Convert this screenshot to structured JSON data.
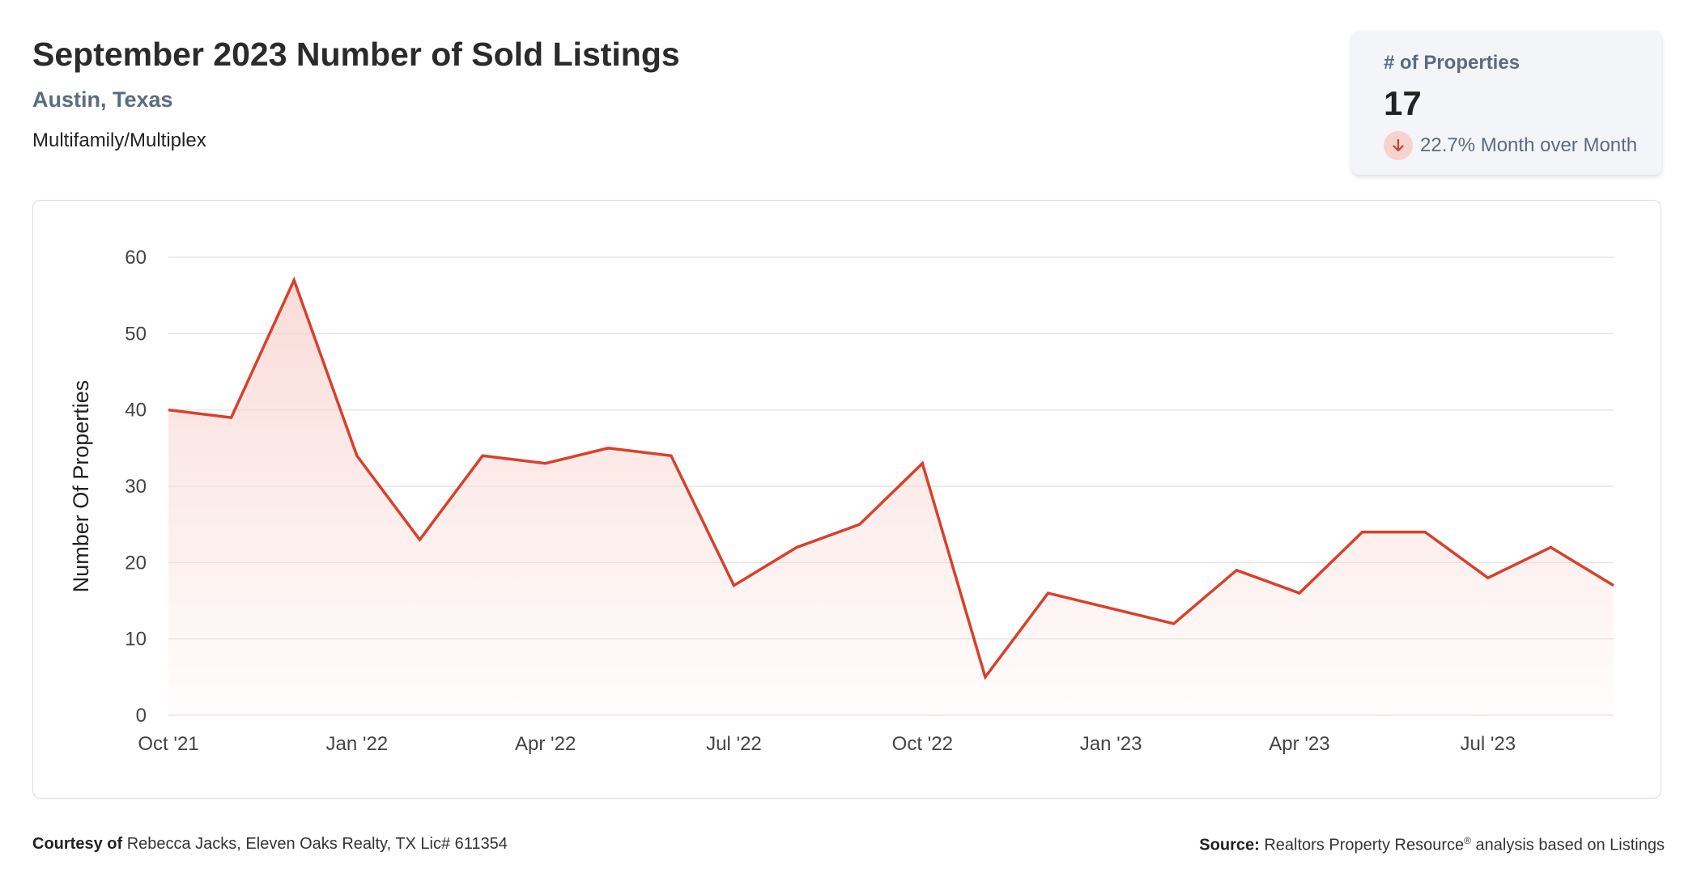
{
  "header": {
    "title": "September 2023 Number of Sold Listings",
    "subtitle": "Austin, Texas",
    "category": "Multifamily/Multiplex"
  },
  "kpi": {
    "label": "# of Properties",
    "value": "17",
    "change": "22.7% Month over Month",
    "direction": "down"
  },
  "footer": {
    "courtesy_label": "Courtesy of",
    "courtesy_text": "Rebecca Jacks, Eleven Oaks Realty, TX Lic# 611354",
    "source_label": "Source:",
    "source_name": "Realtors Property Resource",
    "source_mark": "®",
    "source_text": "analysis based on Listings"
  },
  "colors": {
    "line": "#d9402b",
    "fill_top": "#f9d6d2",
    "grid": "#e5e5e5"
  },
  "chart_data": {
    "type": "area",
    "ylabel": "Number Of Properties",
    "ylim": [
      0,
      60
    ],
    "yticks": [
      0,
      10,
      20,
      30,
      40,
      50,
      60
    ],
    "grid": true,
    "x": [
      "2021-10",
      "2021-11",
      "2021-12",
      "2022-01",
      "2022-02",
      "2022-03",
      "2022-04",
      "2022-05",
      "2022-06",
      "2022-07",
      "2022-08",
      "2022-09",
      "2022-10",
      "2022-11",
      "2022-12",
      "2023-01",
      "2023-02",
      "2023-03",
      "2023-04",
      "2023-05",
      "2023-06",
      "2023-07",
      "2023-08",
      "2023-09"
    ],
    "xtick_labels": [
      "Oct '21",
      "Jan '22",
      "Apr '22",
      "Jul '22",
      "Oct '22",
      "Jan '23",
      "Apr '23",
      "Jul '23"
    ],
    "xtick_months": [
      "2021-10",
      "2022-01",
      "2022-04",
      "2022-07",
      "2022-10",
      "2023-01",
      "2023-04",
      "2023-07"
    ],
    "values": [
      40,
      39,
      57,
      34,
      23,
      34,
      33,
      35,
      34,
      17,
      22,
      25,
      33,
      5,
      16,
      14,
      12,
      19,
      16,
      24,
      24,
      18,
      22,
      17
    ]
  }
}
